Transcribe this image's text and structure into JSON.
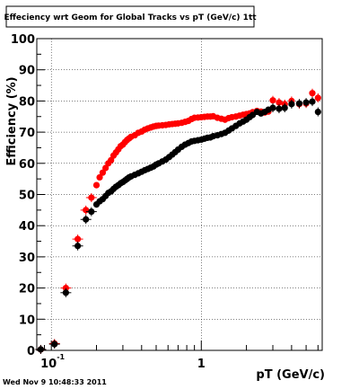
{
  "chart_data": {
    "type": "scatter",
    "title": "Effeciency wrt Geom for Global Tracks vs pT (GeV/c) 1tt",
    "xlabel": "pT (GeV/c)",
    "ylabel": "Efficiency (%)",
    "x_scale": "log",
    "xlim": [
      0.08,
      6.4
    ],
    "ylim": [
      0,
      100
    ],
    "y_ticks": [
      0,
      10,
      20,
      30,
      40,
      50,
      60,
      70,
      80,
      90,
      100
    ],
    "y_tick_labels": [
      "0",
      "10",
      "20",
      "30",
      "40",
      "50",
      "60",
      "70",
      "80",
      "90",
      "100"
    ],
    "x_tick_labels": [
      {
        "value": 0.1,
        "base": "10",
        "exponent": "-1"
      },
      {
        "value": 1,
        "base": "1",
        "exponent": ""
      }
    ],
    "grid": true,
    "colors": {
      "series_red": "#ff0000",
      "series_black": "#000000"
    },
    "series": [
      {
        "color": "#ff0000",
        "x": [
          0.085,
          0.105,
          0.125,
          0.15,
          0.17,
          0.185,
          0.2,
          0.21,
          0.22,
          0.23,
          0.24,
          0.25,
          0.26,
          0.27,
          0.28,
          0.29,
          0.3,
          0.31,
          0.32,
          0.33,
          0.34,
          0.36,
          0.38,
          0.4,
          0.42,
          0.44,
          0.46,
          0.48,
          0.5,
          0.52,
          0.55,
          0.58,
          0.61,
          0.64,
          0.67,
          0.7,
          0.74,
          0.78,
          0.82,
          0.86,
          0.9,
          0.95,
          1.0,
          1.05,
          1.1,
          1.15,
          1.2,
          1.28,
          1.36,
          1.44,
          1.52,
          1.6,
          1.7,
          1.8,
          1.9,
          2.0,
          2.1,
          2.2,
          2.35,
          2.5,
          2.65,
          2.8,
          3.0,
          3.3,
          3.6,
          4.0,
          4.5,
          5.0,
          5.5,
          6.0
        ],
        "y": [
          0.3,
          2.2,
          20.0,
          35.7,
          45.0,
          49.0,
          53.0,
          55.5,
          57.0,
          58.5,
          60.0,
          61.0,
          62.5,
          63.5,
          64.5,
          65.5,
          66.0,
          66.8,
          67.5,
          68.0,
          68.5,
          69.0,
          69.8,
          70.2,
          70.8,
          71.2,
          71.5,
          71.8,
          72.0,
          72.1,
          72.2,
          72.3,
          72.5,
          72.6,
          72.7,
          72.8,
          73.0,
          73.3,
          73.6,
          74.2,
          74.6,
          74.7,
          74.8,
          74.9,
          75.0,
          75.0,
          75.1,
          74.6,
          74.3,
          74.0,
          74.5,
          74.8,
          75.0,
          75.3,
          75.6,
          75.8,
          76.0,
          76.4,
          76.8,
          76.6,
          76.3,
          76.6,
          80.2,
          79.5,
          79.0,
          80.0,
          79.0,
          79.2,
          82.5,
          81.0
        ]
      },
      {
        "color": "#000000",
        "x": [
          0.085,
          0.105,
          0.125,
          0.15,
          0.17,
          0.185,
          0.2,
          0.21,
          0.22,
          0.23,
          0.24,
          0.25,
          0.26,
          0.27,
          0.28,
          0.29,
          0.3,
          0.31,
          0.32,
          0.33,
          0.34,
          0.36,
          0.38,
          0.4,
          0.42,
          0.44,
          0.46,
          0.48,
          0.5,
          0.52,
          0.55,
          0.58,
          0.61,
          0.64,
          0.67,
          0.7,
          0.74,
          0.78,
          0.82,
          0.86,
          0.9,
          0.95,
          1.0,
          1.05,
          1.1,
          1.15,
          1.2,
          1.28,
          1.36,
          1.44,
          1.52,
          1.6,
          1.7,
          1.8,
          1.9,
          2.0,
          2.1,
          2.2,
          2.35,
          2.5,
          2.65,
          2.8,
          3.0,
          3.3,
          3.6,
          4.0,
          4.5,
          5.0,
          5.5,
          6.0
        ],
        "y": [
          0.3,
          2.0,
          18.5,
          33.5,
          42.0,
          44.5,
          46.8,
          47.8,
          48.5,
          49.5,
          50.5,
          51.0,
          51.8,
          52.5,
          53.0,
          53.6,
          54.0,
          54.5,
          55.0,
          55.5,
          55.8,
          56.3,
          56.8,
          57.3,
          57.8,
          58.2,
          58.6,
          59.0,
          59.6,
          60.0,
          60.6,
          61.2,
          62.0,
          62.8,
          63.6,
          64.4,
          65.3,
          66.0,
          66.5,
          67.0,
          67.2,
          67.4,
          67.6,
          67.9,
          68.2,
          68.3,
          68.7,
          69.0,
          69.4,
          69.8,
          70.5,
          71.2,
          72.0,
          72.8,
          73.4,
          74.0,
          74.8,
          75.5,
          76.5,
          76.0,
          76.5,
          77.2,
          77.8,
          77.5,
          77.8,
          79.0,
          79.2,
          79.5,
          79.8,
          76.5
        ]
      }
    ]
  },
  "header": {
    "title": "Effeciency wrt Geom for Global Tracks vs pT (GeV/c) 1tt"
  },
  "axes": {
    "xlabel": "pT (GeV/c)",
    "ylabel": "Efficiency (%)"
  },
  "footer": {
    "timestamp": "Wed Nov  9 10:48:33 2011"
  }
}
